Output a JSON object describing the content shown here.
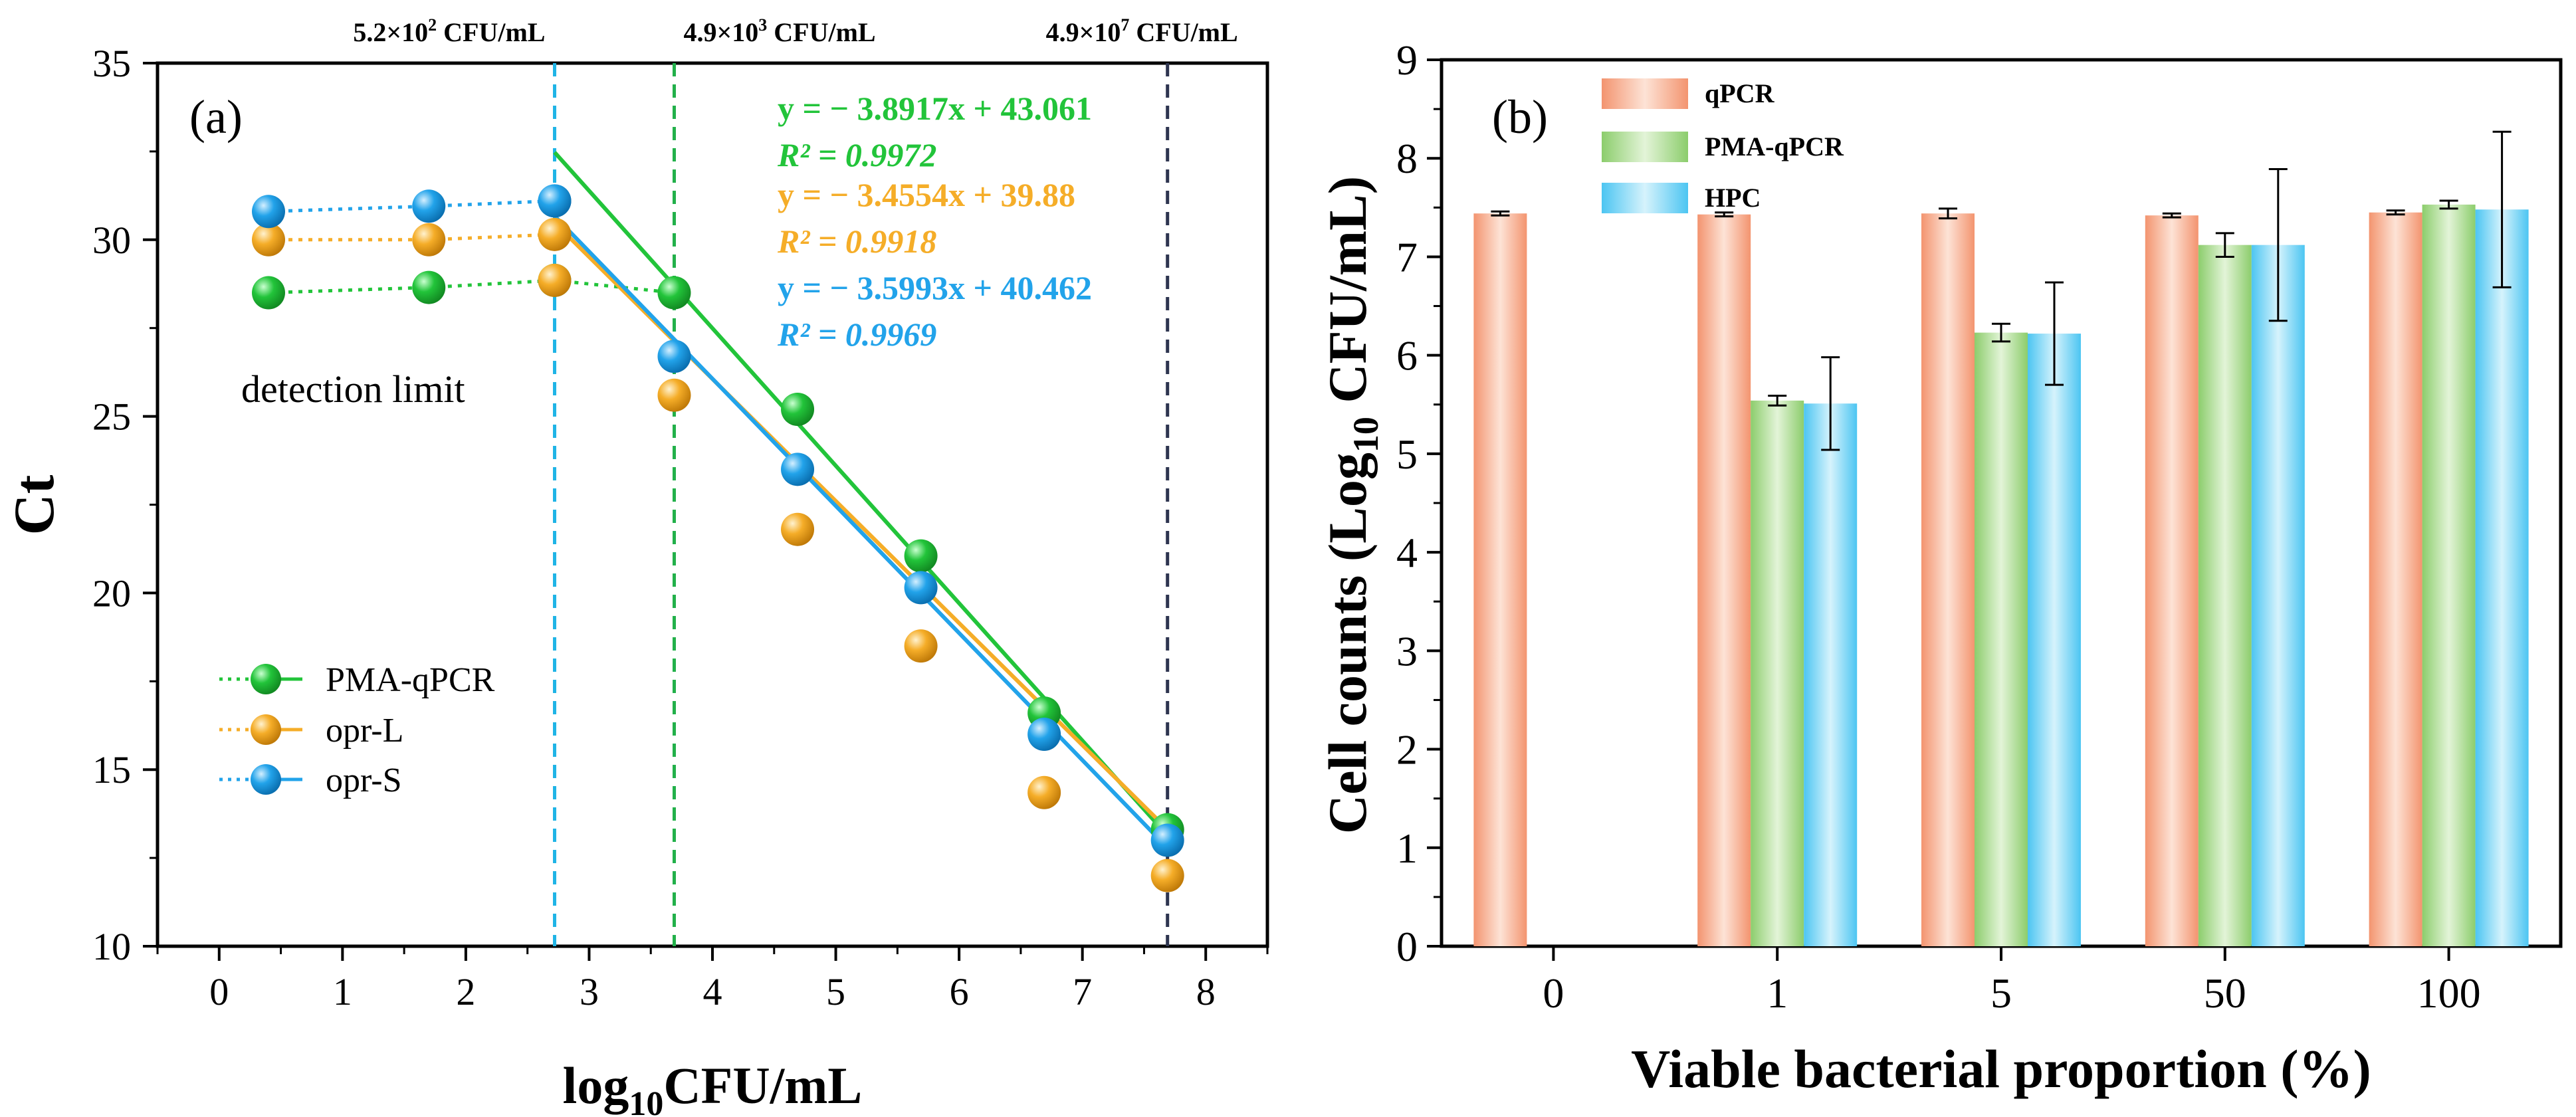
{
  "chart_data": [
    {
      "panel_label": "(a)",
      "type": "scatter",
      "xlabel": "log10CFU/mL",
      "xlabel_main": "log",
      "xlabel_sub": "10",
      "xlabel_tail": "CFU/mL",
      "ylabel": "Ct",
      "xlim": [
        -0.5,
        8.5
      ],
      "ylim": [
        10,
        35
      ],
      "xticks": [
        0,
        1,
        2,
        3,
        4,
        5,
        6,
        7,
        8
      ],
      "yticks": [
        10,
        15,
        20,
        25,
        30,
        35
      ],
      "annotation": "detection limit",
      "vlines": [
        {
          "x": 2.72,
          "color": "#1fb4e6",
          "label_base": "5.2×10",
          "label_exp": "2",
          "label_unit": " CFU/mL"
        },
        {
          "x": 3.69,
          "color": "#22b04a",
          "label_base": "4.9×10",
          "label_exp": "3",
          "label_unit": " CFU/mL"
        },
        {
          "x": 7.69,
          "color": "#2e3550",
          "label_base": "4.9×10",
          "label_exp": "7",
          "label_unit": " CFU/mL"
        }
      ],
      "series": [
        {
          "name": "PMA-qPCR",
          "color": "#22c43a",
          "dark": "#128a22",
          "x_flat": [
            0.4,
            1.7,
            2.72
          ],
          "y_flat": [
            28.5,
            28.65,
            28.85
          ],
          "x_fit": [
            3.69,
            4.69,
            5.69,
            6.69,
            7.69
          ],
          "y_fit": [
            28.5,
            25.2,
            21.05,
            16.6,
            13.3
          ],
          "fit_x_range": [
            2.72,
            7.69
          ],
          "slope": -3.8917,
          "intercept": 43.061,
          "equation": "y = − 3.8917x + 43.061",
          "r2_label": "R² = 0.9972"
        },
        {
          "name": "opr-L",
          "color": "#f5ad28",
          "dark": "#c07a08",
          "x_flat": [
            0.4,
            1.7,
            2.72
          ],
          "y_flat": [
            30.0,
            30.0,
            30.15
          ],
          "x_fit": [
            2.72,
            3.69,
            4.69,
            5.69,
            6.69,
            7.69
          ],
          "y_fit": [
            28.85,
            25.6,
            21.8,
            18.5,
            14.35,
            12.0
          ],
          "fit_x_range": [
            2.72,
            7.69
          ],
          "slope": -3.4554,
          "intercept": 39.88,
          "equation": "y = − 3.4554x + 39.88",
          "r2_label": "R² = 0.9918"
        },
        {
          "name": "opr-S",
          "color": "#22a3ea",
          "dark": "#0a6fb0",
          "x_flat": [
            0.4,
            1.7,
            2.72
          ],
          "y_flat": [
            30.8,
            30.95,
            31.1
          ],
          "x_fit": [
            2.72,
            3.69,
            4.69,
            5.69,
            6.69,
            7.69
          ],
          "y_fit": [
            31.1,
            26.7,
            23.5,
            20.15,
            16.0,
            13.0
          ],
          "fit_x_range": [
            2.72,
            7.69
          ],
          "slope": -3.5993,
          "intercept": 40.462,
          "equation": "y = − 3.5993x + 40.462",
          "r2_label": "R² = 0.9969"
        }
      ],
      "legend_position": "bottom-left"
    },
    {
      "panel_label": "(b)",
      "type": "bar",
      "xlabel": "Viable bacterial proportion (%)",
      "ylabel": "Cell counts (Log10 CFU/mL)",
      "ylabel_pre": "Cell counts (Log",
      "ylabel_sub": "10",
      "ylabel_post": " CFU/mL)",
      "ylim": [
        0,
        9
      ],
      "yticks": [
        0,
        1,
        2,
        3,
        4,
        5,
        6,
        7,
        8,
        9
      ],
      "categories": [
        "0",
        "1",
        "5",
        "50",
        "100"
      ],
      "series": [
        {
          "name": "qPCR",
          "color": "#f6a98a",
          "values": [
            7.44,
            7.43,
            7.44,
            7.42,
            7.45
          ],
          "errors": [
            0.02,
            0.02,
            0.05,
            0.02,
            0.02
          ]
        },
        {
          "name": "PMA-qPCR",
          "color": "#a8d98d",
          "values": [
            null,
            5.54,
            6.23,
            7.12,
            7.53
          ],
          "errors": [
            null,
            0.05,
            0.09,
            0.12,
            0.04
          ]
        },
        {
          "name": "HPC",
          "color": "#7fd4f5",
          "values": [
            null,
            5.51,
            6.22,
            7.12,
            7.48
          ],
          "errors": [
            null,
            0.47,
            0.52,
            0.77,
            0.79
          ]
        }
      ],
      "legend_position": "top-left"
    }
  ]
}
